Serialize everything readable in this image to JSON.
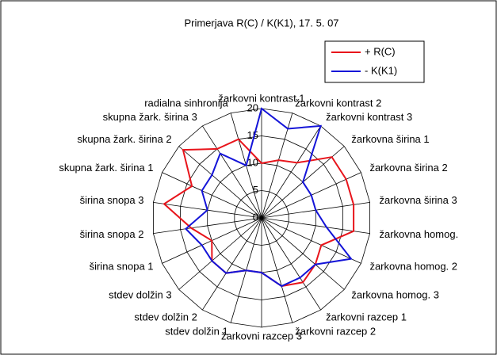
{
  "chart_data": {
    "type": "radar",
    "title": "Primerjava R(C) / K(K1), 17. 5. 07",
    "categories": [
      "žarkovni kontrast 1",
      "žarkovni kontrast 2",
      "žarkovni kontrast 3",
      "žarkovna širina 1",
      "žarkovna širina 2",
      "žarkovna širina 3",
      "žarkovna homog.",
      "žarkovna homog. 2",
      "žarkovna homog. 3",
      "žarkovni razcep 1",
      "žarkovni razcep 2",
      "žarkovni razcep 3",
      "stdev dolžin 1",
      "stdev dolžin 2",
      "stdev dolžin 3",
      "širina snopa 1",
      "širina snopa 2",
      "širina snopa 3",
      "skupna žark. širina 1",
      "skupna žark. širina 2",
      "skupna žark. širina 3",
      "radialna sinhronija"
    ],
    "series": [
      {
        "name": "+ R(C)",
        "color": "#e8141b",
        "values": [
          10,
          11,
          12,
          17,
          17,
          17,
          17,
          12,
          13,
          14,
          13,
          10,
          10,
          12,
          12,
          10,
          13,
          18,
          14,
          19,
          15,
          15
        ]
      },
      {
        "name": "- K(K1)",
        "color": "#1414d8",
        "values": [
          20,
          17,
          20,
          10,
          10,
          10,
          12,
          18,
          13,
          13,
          13,
          10,
          10,
          12,
          12,
          12,
          14,
          10,
          12,
          12,
          14,
          10
        ]
      }
    ],
    "ylim": [
      0,
      20
    ],
    "yticks": [
      0,
      5,
      10,
      15,
      20
    ],
    "legend": "top-right"
  }
}
